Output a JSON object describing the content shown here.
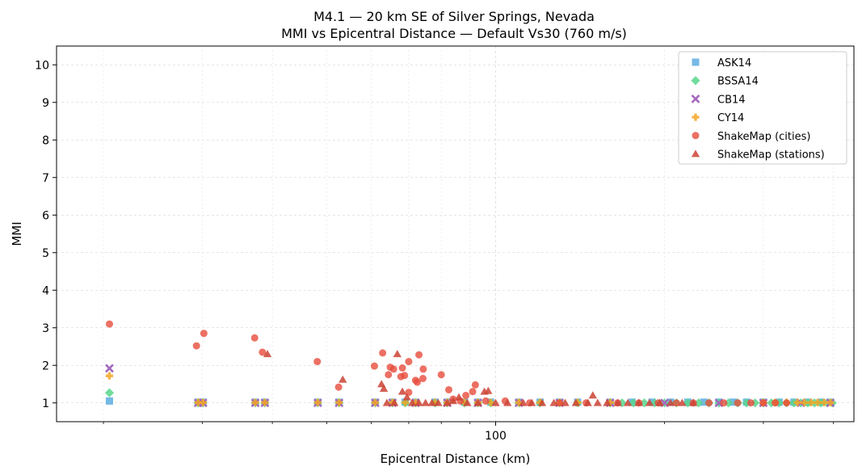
{
  "chart_data": {
    "type": "scatter",
    "title": "M4.1 — 20 km SE of Silver Springs, Nevada",
    "subtitle": "MMI vs Epicentral Distance — Default Vs30 (760 m/s)",
    "xlabel": "Epicentral Distance (km)",
    "ylabel": "MMI",
    "xscale": "log",
    "xlim": [
      16.5,
      435
    ],
    "ylim": [
      0.5,
      10.5
    ],
    "x_ticks": [
      {
        "value": 100,
        "label": "100"
      }
    ],
    "x_minor_ticks": [
      20,
      30,
      40,
      50,
      60,
      70,
      80,
      90,
      200,
      300,
      400
    ],
    "y_ticks": [
      1,
      2,
      3,
      4,
      5,
      6,
      7,
      8,
      9,
      10
    ],
    "grid": true,
    "legend_position": "top-right",
    "series": [
      {
        "name": "ASK14",
        "marker": "square",
        "color": "#5dade2",
        "points": [
          [
            20.5,
            1.05
          ],
          [
            29.5,
            1.02
          ],
          [
            30.1,
            1.02
          ],
          [
            37.3,
            1.02
          ],
          [
            38.8,
            1.02
          ],
          [
            48.2,
            1.02
          ],
          [
            52.6,
            1.02
          ],
          [
            61.0,
            1.02
          ],
          [
            65.5,
            1.02
          ],
          [
            69.0,
            1.02
          ],
          [
            72.0,
            1.02
          ],
          [
            78.0,
            1.02
          ],
          [
            82.0,
            1.02
          ],
          [
            88.0,
            1.02
          ],
          [
            93.0,
            1.02
          ],
          [
            98.0,
            1.02
          ],
          [
            110.0,
            1.02
          ],
          [
            120.0,
            1.02
          ],
          [
            130.0,
            1.02
          ],
          [
            140.0,
            1.02
          ],
          [
            160.0,
            1.02
          ],
          [
            175.0,
            1.02
          ],
          [
            190.0,
            1.02
          ],
          [
            205.0,
            1.02
          ],
          [
            220.0,
            1.02
          ],
          [
            235.0,
            1.02
          ],
          [
            250.0,
            1.02
          ],
          [
            265.0,
            1.02
          ],
          [
            280.0,
            1.02
          ],
          [
            300.0,
            1.02
          ],
          [
            320.0,
            1.02
          ],
          [
            340.0,
            1.02
          ],
          [
            360.0,
            1.02
          ],
          [
            380.0,
            1.02
          ],
          [
            395.0,
            1.02
          ]
        ]
      },
      {
        "name": "BSSA14",
        "marker": "diamond",
        "color": "#58d68d",
        "points": [
          [
            20.5,
            1.27
          ],
          [
            29.5,
            1.0
          ],
          [
            30.1,
            1.0
          ],
          [
            37.3,
            1.0
          ],
          [
            38.8,
            1.0
          ],
          [
            48.2,
            1.0
          ],
          [
            52.6,
            1.0
          ],
          [
            61.0,
            1.0
          ],
          [
            65.5,
            1.0
          ],
          [
            69.0,
            1.0
          ],
          [
            72.0,
            1.0
          ],
          [
            78.0,
            1.0
          ],
          [
            82.0,
            1.0
          ],
          [
            88.0,
            1.0
          ],
          [
            93.0,
            1.0
          ],
          [
            98.0,
            1.0
          ],
          [
            110.0,
            1.0
          ],
          [
            120.0,
            1.0
          ],
          [
            130.0,
            1.0
          ],
          [
            140.0,
            1.0
          ],
          [
            160.0,
            1.0
          ],
          [
            168.0,
            1.0
          ],
          [
            176.0,
            1.0
          ],
          [
            184.0,
            1.0
          ],
          [
            192.0,
            1.0
          ],
          [
            200.0,
            1.0
          ],
          [
            210.0,
            1.0
          ],
          [
            220.0,
            1.0
          ],
          [
            230.0,
            1.0
          ],
          [
            240.0,
            1.0
          ],
          [
            250.0,
            1.0
          ],
          [
            260.0,
            1.0
          ],
          [
            270.0,
            1.0
          ],
          [
            280.0,
            1.0
          ],
          [
            290.0,
            1.0
          ],
          [
            300.0,
            1.0
          ],
          [
            310.0,
            1.0
          ],
          [
            320.0,
            1.0
          ],
          [
            330.0,
            1.0
          ],
          [
            340.0,
            1.0
          ],
          [
            350.0,
            1.0
          ],
          [
            360.0,
            1.0
          ],
          [
            370.0,
            1.0
          ],
          [
            380.0,
            1.0
          ],
          [
            390.0,
            1.0
          ],
          [
            398.0,
            1.0
          ]
        ]
      },
      {
        "name": "CB14",
        "marker": "x",
        "color": "#a569bd",
        "points": [
          [
            20.5,
            1.92
          ],
          [
            29.5,
            1.0
          ],
          [
            30.1,
            1.0
          ],
          [
            37.3,
            1.0
          ],
          [
            38.8,
            1.0
          ],
          [
            48.2,
            1.0
          ],
          [
            52.6,
            1.0
          ],
          [
            61.0,
            1.0
          ],
          [
            65.5,
            1.0
          ],
          [
            72.0,
            1.0
          ],
          [
            82.0,
            1.0
          ],
          [
            93.0,
            1.0
          ],
          [
            110.0,
            1.0
          ],
          [
            130.0,
            1.0
          ],
          [
            160.0,
            1.0
          ],
          [
            200.0,
            1.0
          ],
          [
            250.0,
            1.0
          ],
          [
            300.0,
            1.0
          ],
          [
            350.0,
            1.0
          ],
          [
            395.0,
            1.0
          ]
        ]
      },
      {
        "name": "CY14",
        "marker": "plus",
        "color": "#f5a623",
        "points": [
          [
            20.5,
            1.72
          ],
          [
            29.5,
            1.01
          ],
          [
            30.1,
            1.01
          ],
          [
            37.3,
            1.01
          ],
          [
            38.8,
            1.01
          ],
          [
            48.2,
            1.01
          ],
          [
            52.6,
            1.01
          ],
          [
            61.0,
            1.01
          ],
          [
            65.5,
            1.01
          ],
          [
            69.0,
            1.01
          ],
          [
            72.0,
            1.01
          ],
          [
            78.0,
            1.01
          ],
          [
            82.0,
            1.01
          ],
          [
            88.0,
            1.01
          ],
          [
            93.0,
            1.01
          ],
          [
            98.0,
            1.01
          ],
          [
            110.0,
            1.01
          ],
          [
            120.0,
            1.01
          ],
          [
            130.0,
            1.01
          ],
          [
            140.0,
            1.01
          ],
          [
            160.0,
            1.01
          ],
          [
            300.0,
            1.01
          ],
          [
            315.0,
            1.01
          ],
          [
            330.0,
            1.01
          ],
          [
            345.0,
            1.01
          ],
          [
            355.0,
            1.01
          ],
          [
            365.0,
            1.01
          ],
          [
            375.0,
            1.01
          ],
          [
            385.0,
            1.01
          ],
          [
            395.0,
            1.01
          ]
        ]
      },
      {
        "name": "ShakeMap (cities)",
        "marker": "circle",
        "color": "#e74c3c",
        "points": [
          [
            20.5,
            3.1
          ],
          [
            29.3,
            2.52
          ],
          [
            30.2,
            2.85
          ],
          [
            37.2,
            2.73
          ],
          [
            38.4,
            2.35
          ],
          [
            48.1,
            2.1
          ],
          [
            52.5,
            1.42
          ],
          [
            60.8,
            1.98
          ],
          [
            62.9,
            2.33
          ],
          [
            64.4,
            1.75
          ],
          [
            64.9,
            1.95
          ],
          [
            65.8,
            1.9
          ],
          [
            67.8,
            1.7
          ],
          [
            68.2,
            1.93
          ],
          [
            68.8,
            1.73
          ],
          [
            70.0,
            2.1
          ],
          [
            72.0,
            1.6
          ],
          [
            72.5,
            1.55
          ],
          [
            73.0,
            2.28
          ],
          [
            74.3,
            1.9
          ],
          [
            74.2,
            1.65
          ],
          [
            70.0,
            1.28
          ],
          [
            80.0,
            1.75
          ],
          [
            82.5,
            1.35
          ],
          [
            84.0,
            1.1
          ],
          [
            86.5,
            1.05
          ],
          [
            88.5,
            1.2
          ],
          [
            91.0,
            1.3
          ],
          [
            92.0,
            1.48
          ],
          [
            96.0,
            1.05
          ],
          [
            104.0,
            1.05
          ],
          [
            115.0,
            1.0
          ],
          [
            130.0,
            1.0
          ],
          [
            145.0,
            1.0
          ],
          [
            165.0,
            1.0
          ],
          [
            180.0,
            1.0
          ],
          [
            195.0,
            1.0
          ],
          [
            210.0,
            1.0
          ],
          [
            225.0,
            1.0
          ],
          [
            240.0,
            1.0
          ],
          [
            255.0,
            1.0
          ],
          [
            270.0,
            1.0
          ],
          [
            285.0,
            1.0
          ],
          [
            300.0,
            1.0
          ],
          [
            315.0,
            1.0
          ],
          [
            330.0,
            1.0
          ]
        ]
      },
      {
        "name": "ShakeMap (stations)",
        "marker": "triangle",
        "color": "#cb4335",
        "points": [
          [
            39.2,
            2.3
          ],
          [
            53.4,
            1.62
          ],
          [
            62.6,
            1.5
          ],
          [
            63.2,
            1.38
          ],
          [
            64.0,
            1.0
          ],
          [
            66.0,
            1.0
          ],
          [
            66.8,
            2.3
          ],
          [
            68.2,
            1.3
          ],
          [
            69.5,
            1.15
          ],
          [
            71.0,
            1.0
          ],
          [
            73.0,
            1.0
          ],
          [
            75.0,
            1.0
          ],
          [
            77.0,
            1.0
          ],
          [
            79.0,
            1.0
          ],
          [
            82.0,
            1.0
          ],
          [
            84.0,
            1.05
          ],
          [
            86.0,
            1.15
          ],
          [
            89.0,
            1.0
          ],
          [
            93.0,
            1.0
          ],
          [
            95.5,
            1.3
          ],
          [
            97.0,
            1.32
          ],
          [
            100.0,
            1.0
          ],
          [
            105.0,
            1.0
          ],
          [
            112.0,
            1.0
          ],
          [
            116.0,
            1.0
          ],
          [
            121.0,
            1.0
          ],
          [
            127.0,
            1.0
          ],
          [
            133.0,
            1.0
          ],
          [
            139.0,
            1.0
          ],
          [
            146.0,
            1.0
          ],
          [
            149.0,
            1.2
          ],
          [
            152.0,
            1.0
          ],
          [
            158.0,
            1.0
          ],
          [
            165.0,
            1.0
          ],
          [
            172.0,
            1.0
          ],
          [
            180.0,
            1.0
          ],
          [
            188.0,
            1.0
          ],
          [
            196.0,
            1.0
          ],
          [
            205.0,
            1.0
          ],
          [
            215.0,
            1.0
          ],
          [
            225.0,
            1.0
          ]
        ]
      }
    ]
  }
}
